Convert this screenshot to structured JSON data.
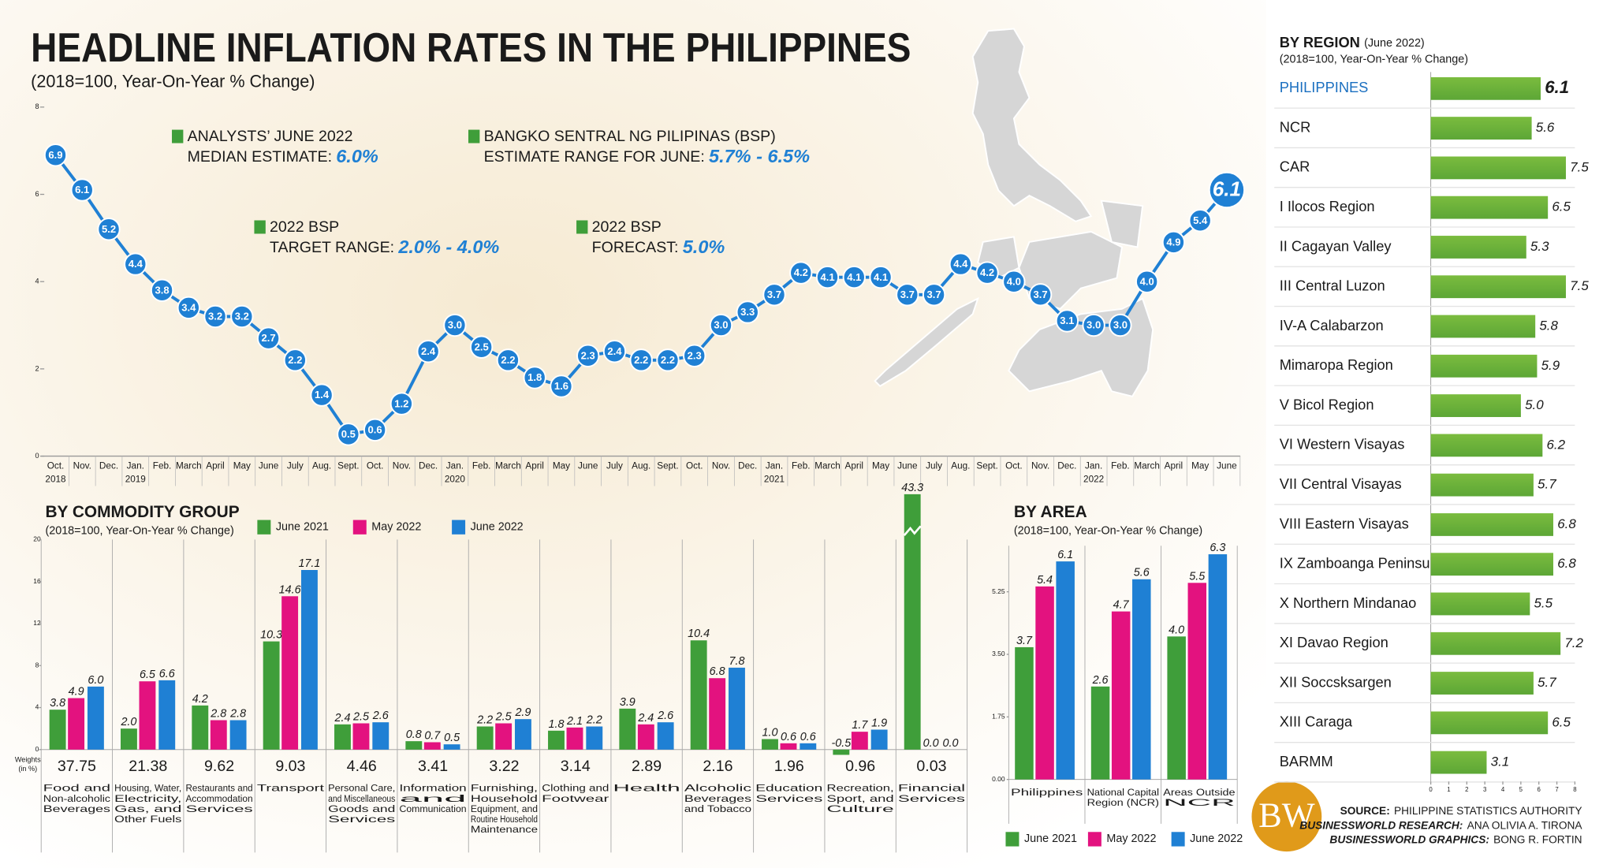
{
  "chart_data": [
    {
      "type": "line",
      "title": "HEADLINE INFLATION RATES IN THE PHILIPPINES",
      "subtitle": "(2018=100, Year-On-Year % Change)",
      "annotations": [
        {
          "lines": [
            "ANALYSTS’ JUNE 2022",
            "MEDIAN ESTIMATE:"
          ],
          "highlight": "6.0%"
        },
        {
          "lines": [
            "BANGKO SENTRAL NG PILIPINAS (BSP)",
            "ESTIMATE RANGE FOR JUNE:"
          ],
          "highlight": "5.7% - 6.5%"
        },
        {
          "lines": [
            "2022 BSP",
            "TARGET RANGE:"
          ],
          "highlight": "2.0% - 4.0%"
        },
        {
          "lines": [
            "2022 BSP",
            "FORECAST:"
          ],
          "highlight": "5.0%"
        }
      ],
      "categories": [
        "Oct.",
        "Nov.",
        "Dec.",
        "Jan.",
        "Feb.",
        "March",
        "April",
        "May",
        "June",
        "July",
        "Aug.",
        "Sept.",
        "Oct.",
        "Nov.",
        "Dec.",
        "Jan.",
        "Feb.",
        "March",
        "April",
        "May",
        "June",
        "July",
        "Aug.",
        "Sept.",
        "Oct.",
        "Nov.",
        "Dec.",
        "Jan.",
        "Feb.",
        "March",
        "April",
        "May",
        "June",
        "July",
        "Aug.",
        "Sept.",
        "Oct.",
        "Nov.",
        "Dec.",
        "Jan.",
        "Feb.",
        "March",
        "April",
        "May",
        "June"
      ],
      "years": [
        "2018",
        null,
        null,
        "2019",
        null,
        null,
        null,
        null,
        null,
        null,
        null,
        null,
        null,
        null,
        null,
        "2020",
        null,
        null,
        null,
        null,
        null,
        null,
        null,
        null,
        null,
        null,
        null,
        "2021",
        null,
        null,
        null,
        null,
        null,
        null,
        null,
        null,
        null,
        null,
        null,
        "2022",
        null,
        null,
        null,
        null,
        null
      ],
      "values": [
        6.9,
        6.1,
        5.2,
        4.4,
        3.8,
        3.4,
        3.2,
        3.2,
        2.7,
        2.2,
        1.4,
        0.5,
        0.6,
        1.2,
        2.4,
        3.0,
        2.5,
        2.2,
        1.8,
        1.6,
        2.3,
        2.4,
        2.2,
        2.2,
        2.3,
        3.0,
        3.3,
        3.7,
        4.2,
        4.1,
        4.1,
        4.1,
        3.7,
        3.7,
        4.4,
        4.2,
        4.0,
        3.7,
        3.1,
        3.0,
        3.0,
        4.0,
        4.9,
        5.4,
        6.1
      ],
      "value_labels": [
        "6.9",
        "6.1",
        "5.2",
        "4.4",
        "3.8",
        "3.4",
        "3.2",
        "3.2",
        "2.7",
        "2.2",
        "1.4",
        "0.5",
        "0.6",
        "1.2",
        "2.4",
        "3.0",
        "2.5",
        "2.2",
        "1.8",
        "1.6",
        "2.3",
        "2.4",
        "2.2",
        "2.2",
        "2.3",
        "3.0",
        "3.3",
        "3.7",
        "4.2",
        "4.1",
        "4.1",
        "4.1",
        "3.7",
        "3.7",
        "4.4",
        "4.2",
        "4.0",
        "3.7",
        "3.1",
        "3.0",
        "3.0",
        "4.0",
        "4.9",
        "5.4",
        "6.1"
      ],
      "color": "#1f80d4",
      "ylim": [
        0,
        8
      ],
      "yticks": [
        0,
        2,
        4,
        6,
        8
      ]
    },
    {
      "type": "bar",
      "title": "BY COMMODITY GROUP",
      "subtitle": "(2018=100, Year-On-Year % Change)",
      "legend": "top",
      "categories": [
        [
          "Food and",
          "Non-alcoholic",
          "Beverages"
        ],
        [
          "Housing, Water,",
          "Electricity,",
          "Gas, and",
          "Other Fuels"
        ],
        [
          "Restaurants and",
          "Accommodation",
          "Services"
        ],
        [
          "Transport"
        ],
        [
          "Personal Care,",
          "and Miscellaneous",
          "Goods and",
          "Services"
        ],
        [
          "Information",
          "and",
          "Communication"
        ],
        [
          "Furnishing,",
          "Household",
          "Equipment, and",
          "Routine Household",
          "Maintenance"
        ],
        [
          "Clothing and",
          "Footwear"
        ],
        [
          "Health"
        ],
        [
          "Alcoholic",
          "Beverages",
          "and Tobacco"
        ],
        [
          "Education",
          "Services"
        ],
        [
          "Recreation,",
          "Sport, and",
          "Culture"
        ],
        [
          "Financial",
          "Services"
        ]
      ],
      "weights_label": [
        "Weights",
        "(in %)"
      ],
      "weights": [
        37.75,
        21.38,
        9.62,
        9.03,
        4.46,
        3.41,
        3.22,
        3.14,
        2.89,
        2.16,
        1.96,
        0.96,
        0.03
      ],
      "series": [
        {
          "name": "June 2021",
          "color": "#3f9e3a",
          "values": [
            3.8,
            2.0,
            4.2,
            10.3,
            2.4,
            0.8,
            2.2,
            1.8,
            3.9,
            10.4,
            1.0,
            -0.5,
            43.3
          ],
          "value_labels": [
            "3.8",
            "2.0",
            "4.2",
            "10.3",
            "2.4",
            "0.8",
            "2.2",
            "1.8",
            "3.9",
            "10.4",
            "1.0",
            "-0.5",
            "43.3"
          ]
        },
        {
          "name": "May 2022",
          "color": "#e3127f",
          "values": [
            4.9,
            6.5,
            2.8,
            14.6,
            2.5,
            0.7,
            2.5,
            2.1,
            2.4,
            6.8,
            0.6,
            1.7,
            0.0
          ],
          "value_labels": [
            "4.9",
            "6.5",
            "2.8",
            "14.6",
            "2.5",
            "0.7",
            "2.5",
            "2.1",
            "2.4",
            "6.8",
            "0.6",
            "1.7",
            "0.0"
          ]
        },
        {
          "name": "June 2022",
          "color": "#1f80d4",
          "values": [
            6.0,
            6.6,
            2.8,
            17.1,
            2.6,
            0.5,
            2.9,
            2.2,
            2.6,
            7.8,
            0.6,
            1.9,
            0.0
          ],
          "value_labels": [
            "6.0",
            "6.6",
            "2.8",
            "17.1",
            "2.6",
            "0.5",
            "2.9",
            "2.2",
            "2.6",
            "7.8",
            "0.6",
            "1.9",
            "0.0"
          ]
        }
      ],
      "ylim": [
        -1,
        20
      ],
      "yticks": [
        0,
        4,
        8,
        12,
        16,
        20
      ],
      "axis_break": true
    },
    {
      "type": "bar",
      "title": "BY AREA",
      "subtitle": "(2018=100, Year-On-Year % Change)",
      "legend": "bottom",
      "categories": [
        [
          "Philippines"
        ],
        [
          "National Capital",
          "Region (NCR)"
        ],
        [
          "Areas Outside",
          "NCR"
        ]
      ],
      "series": [
        {
          "name": "June 2021",
          "color": "#3f9e3a",
          "values": [
            3.7,
            2.6,
            4.0
          ],
          "value_labels": [
            "3.7",
            "2.6",
            "4.0"
          ]
        },
        {
          "name": "May 2022",
          "color": "#e3127f",
          "values": [
            5.4,
            4.7,
            5.5
          ],
          "value_labels": [
            "5.4",
            "4.7",
            "5.5"
          ]
        },
        {
          "name": "June 2022",
          "color": "#1f80d4",
          "values": [
            6.1,
            5.6,
            6.3
          ],
          "value_labels": [
            "6.1",
            "5.6",
            "6.3"
          ]
        }
      ],
      "ylim": [
        0,
        7
      ],
      "yticks": [
        {
          "value": 0,
          "label": "0.00"
        },
        {
          "value": 1.75,
          "label": "1.75"
        },
        {
          "value": 3.5,
          "label": "3.50"
        },
        {
          "value": 5.25,
          "label": "5.25"
        }
      ]
    },
    {
      "type": "bar",
      "orientation": "horizontal",
      "title": "BY REGION",
      "title_note": "(June 2022)",
      "subtitle": "(2018=100, Year-On-Year % Change)",
      "categories": [
        "PHILIPPINES",
        "NCR",
        "CAR",
        "I Ilocos Region",
        "II Cagayan Valley",
        "III Central Luzon",
        "IV-A Calabarzon",
        "Mimaropa Region",
        "V Bicol Region",
        "VI Western Visayas",
        "VII Central Visayas",
        "VIII Eastern Visayas",
        "IX Zamboanga Peninsula",
        "X Northern Mindanao",
        "XI Davao Region",
        "XII Soccsksargen",
        "XIII Caraga",
        "BARMM"
      ],
      "values": [
        6.1,
        5.6,
        7.5,
        6.5,
        5.3,
        7.5,
        5.8,
        5.9,
        5.0,
        6.2,
        5.7,
        6.8,
        6.8,
        5.5,
        7.2,
        5.7,
        6.5,
        3.1
      ],
      "value_labels": [
        "6.1",
        "5.6",
        "7.5",
        "6.5",
        "5.3",
        "7.5",
        "5.8",
        "5.9",
        "5.0",
        "6.2",
        "5.7",
        "6.8",
        "6.8",
        "5.5",
        "7.2",
        "5.7",
        "6.5",
        "3.1"
      ],
      "color": "#6ab23e",
      "xlim": [
        0,
        8
      ],
      "xticks": [
        0,
        1,
        2,
        3,
        4,
        5,
        6,
        7,
        8
      ]
    }
  ],
  "footer": [
    {
      "label": "SOURCE:",
      "text": "PHILIPPINE STATISTICS AUTHORITY"
    },
    {
      "label": "BUSINESSWORLD RESEARCH:",
      "text": "ANA OLIVIA A. TIRONA"
    },
    {
      "label": "BUSINESSWORLD GRAPHICS:",
      "text": "BONG R. FORTIN"
    }
  ],
  "logo": "BW"
}
